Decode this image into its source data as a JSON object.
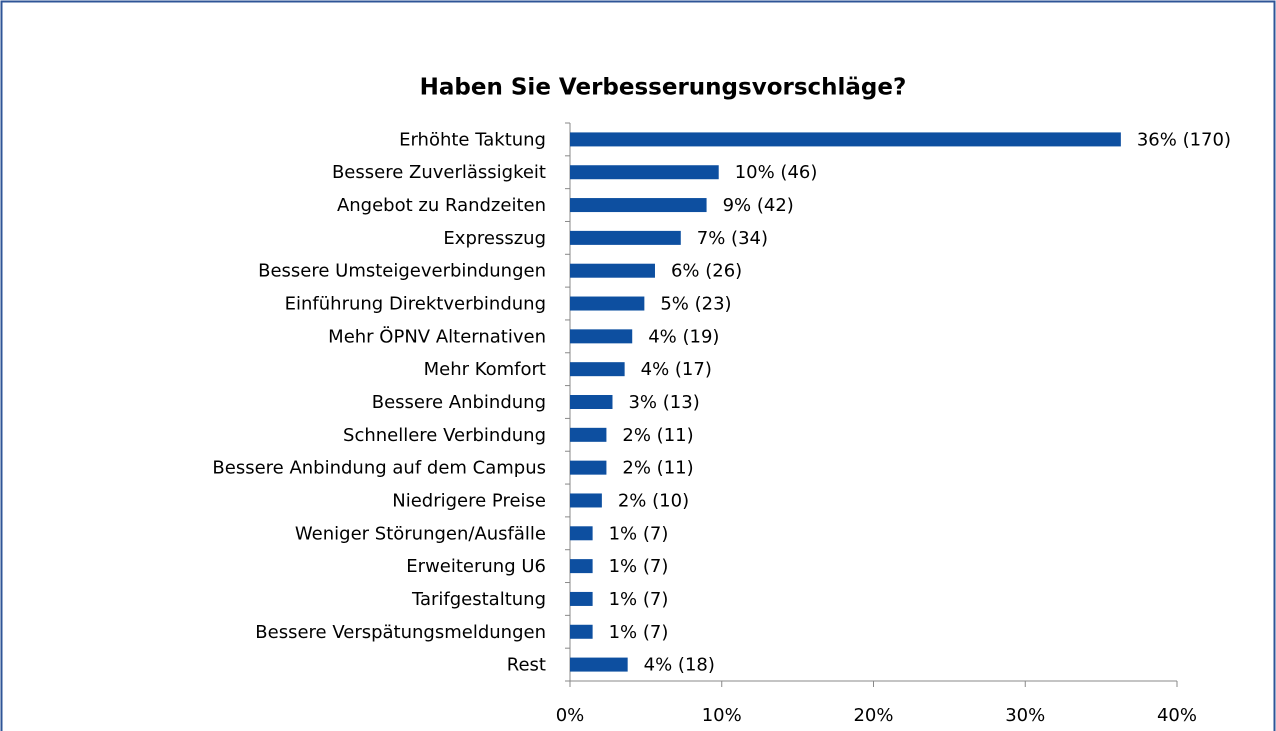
{
  "chart_data": {
    "type": "bar",
    "orientation": "horizontal",
    "title": "Haben Sie Verbesserungsvorschläge?",
    "categories": [
      "Erhöhte Taktung",
      "Bessere Zuverlässigkeit",
      "Angebot zu Randzeiten",
      "Expresszug",
      "Bessere Umsteigeverbindungen",
      "Einführung Direktverbindung",
      "Mehr ÖPNV Alternativen",
      "Mehr Komfort",
      "Bessere Anbindung",
      "Schnellere Verbindung",
      "Bessere Anbindung auf dem Campus",
      "Niedrigere Preise",
      "Weniger Störungen/Ausfälle",
      "Erweiterung U6",
      "Tarifgestaltung",
      "Bessere Verspätungsmeldungen",
      "Rest"
    ],
    "values": [
      36.3,
      9.8,
      9.0,
      7.3,
      5.6,
      4.9,
      4.1,
      3.6,
      2.8,
      2.4,
      2.4,
      2.1,
      1.49,
      1.49,
      1.49,
      1.49,
      3.8
    ],
    "value_labels": [
      "36% (170)",
      "10% (46)",
      "9% (42)",
      "7% (34)",
      "6% (26)",
      "5% (23)",
      "4% (19)",
      "4% (17)",
      "3% (13)",
      "2% (11)",
      "2% (11)",
      "2% (10)",
      "1% (7)",
      "1% (7)",
      "1% (7)",
      "1% (7)",
      "4% (18)"
    ],
    "color": "#0d4fa0",
    "xlim": [
      0,
      40
    ],
    "xticks": [
      {
        "value": 0,
        "label": "0%"
      },
      {
        "value": 10,
        "label": "10%"
      },
      {
        "value": 20,
        "label": "20%"
      },
      {
        "value": 30,
        "label": "30%"
      },
      {
        "value": 40,
        "label": "40%"
      }
    ],
    "grid": false
  }
}
